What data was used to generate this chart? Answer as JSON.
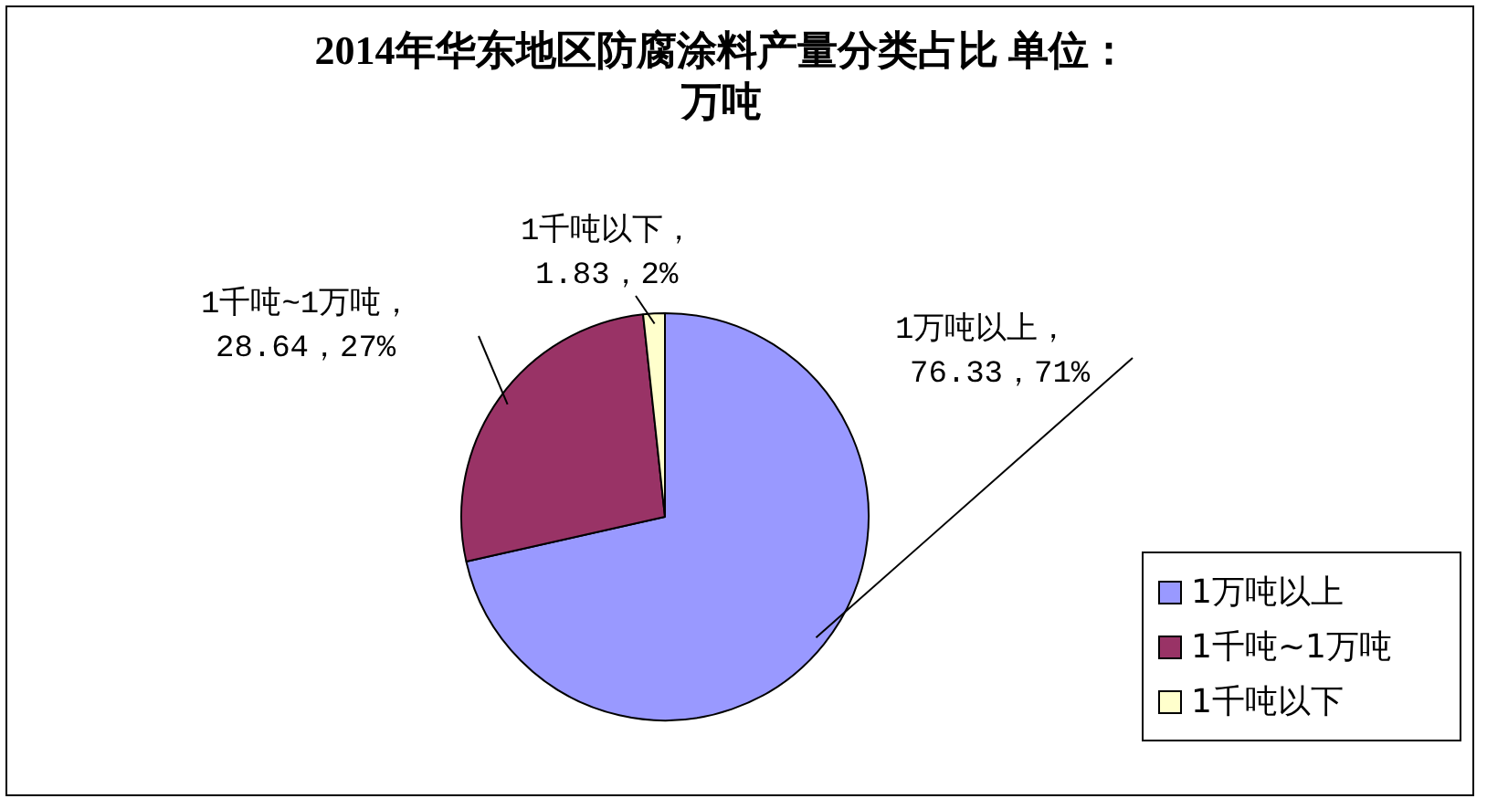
{
  "chart_data": {
    "type": "pie",
    "title": "2014年华东地区防腐涂料产量分类占比 单位：万吨",
    "categories": [
      "1万吨以上",
      "1千吨~1万吨",
      "1千吨以下"
    ],
    "values": [
      76.33,
      28.64,
      1.83
    ],
    "colors": [
      "#9999ff",
      "#993366",
      "#ffffcc"
    ],
    "value_labels": [
      "1万吨以上，\n76.33，71%",
      "1千吨~1万吨，\n28.64，27%",
      "1千吨以下，\n1.83，2%"
    ],
    "legend": "right"
  }
}
